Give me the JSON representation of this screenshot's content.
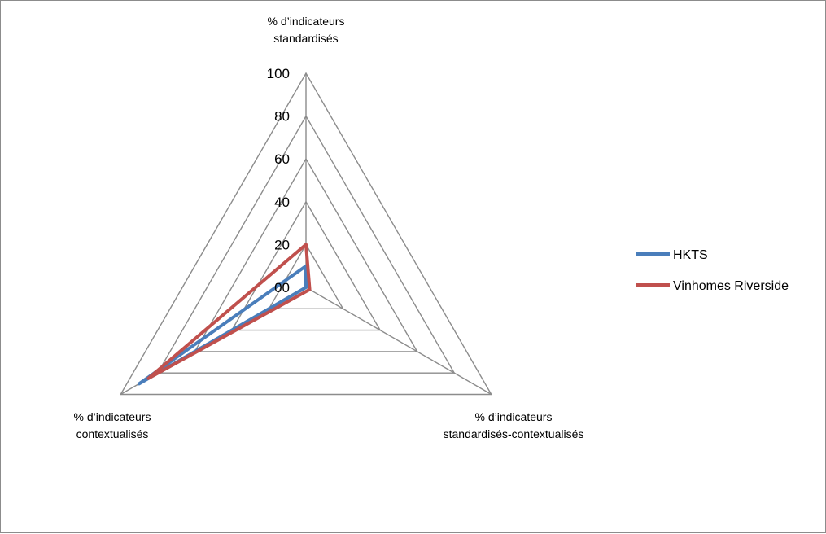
{
  "chart_data": {
    "type": "radar",
    "axes": [
      {
        "label_lines": [
          "% d’indicateurs",
          "standardisés"
        ]
      },
      {
        "label_lines": [
          "% d’indicateurs",
          "standardisés-contextualisés"
        ]
      },
      {
        "label_lines": [
          "% d’indicateurs",
          "contextualisés"
        ]
      }
    ],
    "tick_labels": [
      "00",
      "20",
      "40",
      "60",
      "80",
      "100"
    ],
    "rmax": 100,
    "rings": [
      0,
      20,
      40,
      60,
      80,
      100
    ],
    "series": [
      {
        "name": "HKTS",
        "color": "#4a7ebb",
        "values": [
          10,
          0,
          90
        ]
      },
      {
        "name": "Vinhomes Riverside",
        "color": "#c0504d",
        "values": [
          20,
          2,
          85
        ]
      }
    ],
    "legend_position": "right",
    "grid": true
  }
}
